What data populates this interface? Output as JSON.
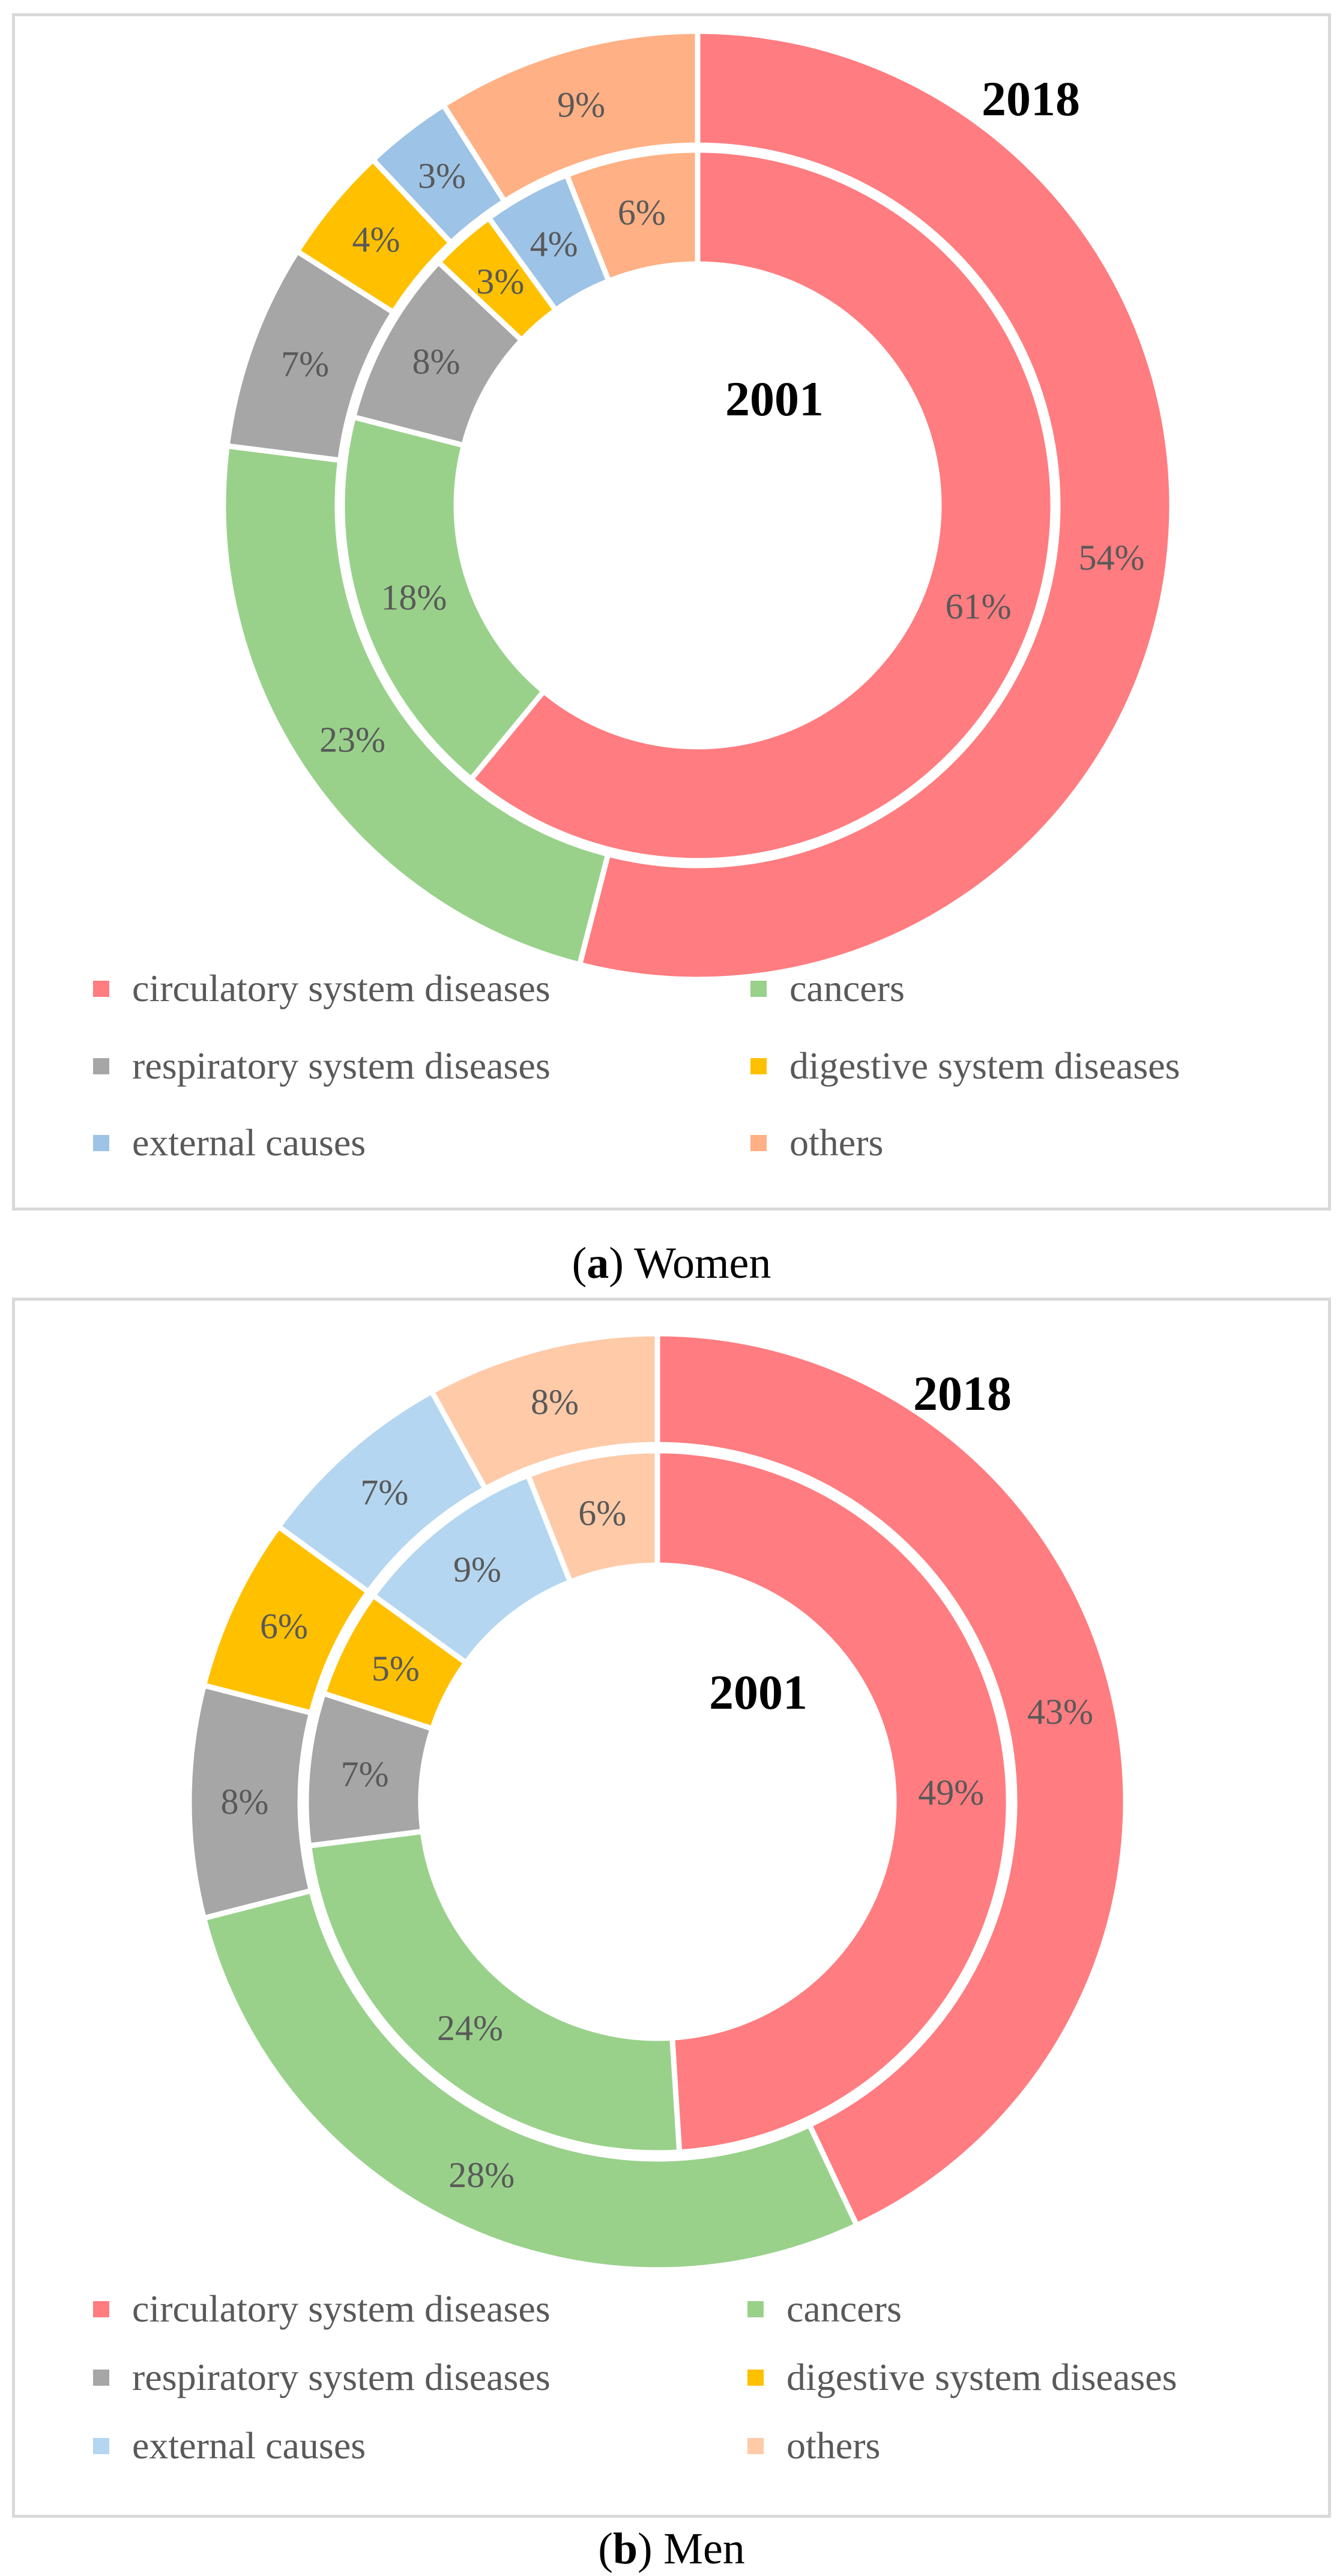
{
  "chart_data": [
    {
      "type": "doughnut",
      "panel": "a",
      "caption_letter": "a",
      "caption_text": "Women",
      "outer_ring_label": "2018",
      "inner_ring_label": "2001",
      "categories": [
        "circulatory system diseases",
        "cancers",
        "respiratory system diseases",
        "digestive system diseases",
        "external causes",
        "others"
      ],
      "colors": [
        "#ff7c80",
        "#99d18b",
        "#a6a6a6",
        "#ffc000",
        "#9dc3e6",
        "#ffb084"
      ],
      "series": [
        {
          "name": "2018",
          "ring": "outer",
          "values": [
            54,
            23,
            7,
            4,
            3,
            9
          ],
          "labels": [
            "54%",
            "23%",
            "7%",
            "4%",
            "3%",
            "9%"
          ]
        },
        {
          "name": "2001",
          "ring": "inner",
          "values": [
            61,
            18,
            8,
            3,
            4,
            6
          ],
          "labels": [
            "61%",
            "18%",
            "8%",
            "3%",
            "4%",
            "6%"
          ]
        }
      ]
    },
    {
      "type": "doughnut",
      "panel": "b",
      "caption_letter": "b",
      "caption_text": "Men",
      "outer_ring_label": "2018",
      "inner_ring_label": "2001",
      "categories": [
        "circulatory system diseases",
        "cancers",
        "respiratory system diseases",
        "digestive system diseases",
        "external causes",
        "others"
      ],
      "colors": [
        "#ff7c80",
        "#99d18b",
        "#a6a6a6",
        "#ffc000",
        "#b4d6f0",
        "#ffcaa8"
      ],
      "series": [
        {
          "name": "2018",
          "ring": "outer",
          "values": [
            43,
            28,
            8,
            6,
            7,
            8
          ],
          "labels": [
            "43%",
            "28%",
            "8%",
            "6%",
            "7%",
            "8%"
          ]
        },
        {
          "name": "2001",
          "ring": "inner",
          "values": [
            49,
            24,
            7,
            5,
            9,
            6
          ],
          "labels": [
            "49%",
            "24%",
            "7%",
            "5%",
            "9%",
            "6%"
          ]
        }
      ]
    }
  ]
}
